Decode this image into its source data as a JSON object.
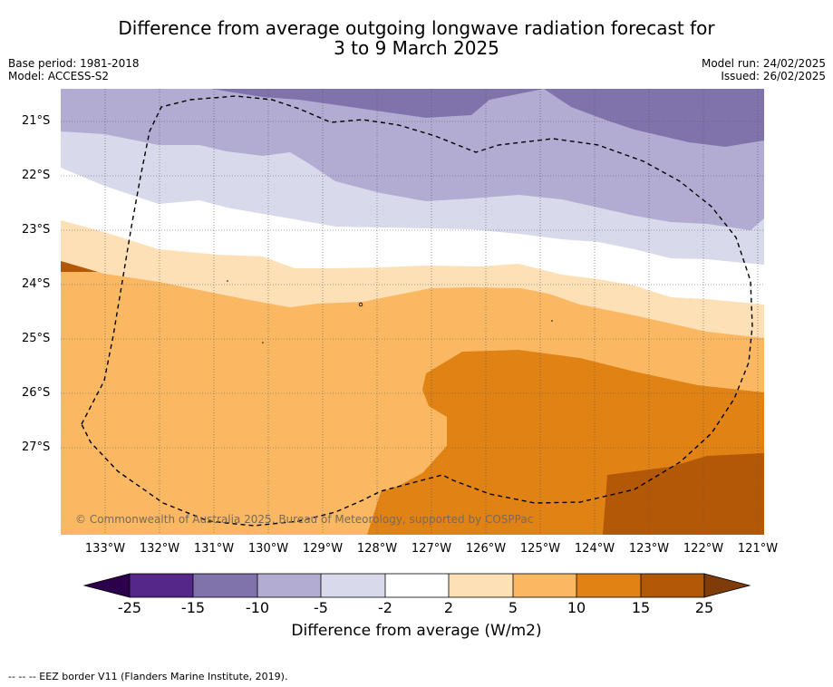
{
  "title_line1": "Difference from average outgoing longwave radiation forecast for",
  "title_line2": "3 to 9 March 2025",
  "meta_left": {
    "base_period": "Base period: 1981-2018",
    "model": "Model: ACCESS-S2"
  },
  "meta_right": {
    "model_run": "Model run: 24/02/2025",
    "issued": "Issued: 26/02/2025"
  },
  "map": {
    "lat_labels": [
      "21°S",
      "22°S",
      "23°S",
      "24°S",
      "25°S",
      "26°S",
      "27°S"
    ],
    "lon_labels": [
      "133°W",
      "132°W",
      "131°W",
      "130°W",
      "129°W",
      "128°W",
      "127°W",
      "126°W",
      "125°W",
      "124°W",
      "123°W",
      "122°W",
      "121°W"
    ],
    "copyright": "© Commonwealth of Australia 2025, Bureau of Meteorology, supported by COSPPac"
  },
  "colorbar": {
    "label": "Difference from average (W/m2)",
    "ticks": [
      "-25",
      "-15",
      "-10",
      "-5",
      "-2",
      "2",
      "5",
      "10",
      "15",
      "25"
    ],
    "colors": [
      "#542788",
      "#8073ac",
      "#b2abd2",
      "#d8daeb",
      "#ffffff",
      "#fee0b6",
      "#fbb863",
      "#e08214",
      "#b35806"
    ],
    "under_color": "#2d004b",
    "over_color": "#7f3b08"
  },
  "footnote": "-- -- -- EEZ border V11 (Flanders Marine Institute, 2019)."
}
